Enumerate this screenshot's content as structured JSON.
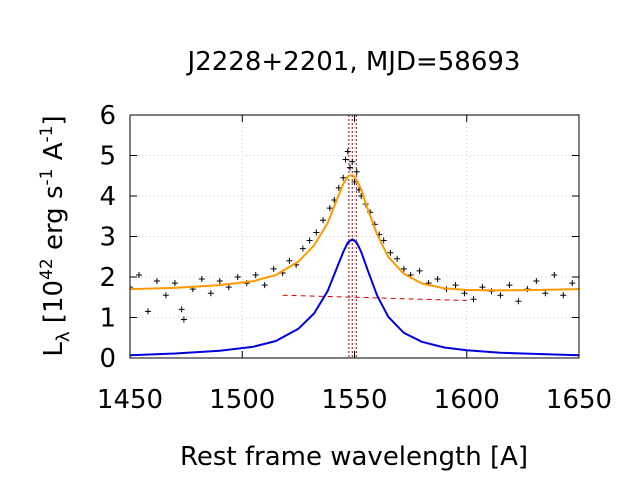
{
  "chart_data": {
    "type": "line",
    "title": "J2228+2201, MJD=58693",
    "xlabel": "Rest frame wavelength [A]",
    "ylabel": {
      "main": "L",
      "sub": "λ",
      "pre": " [10",
      "sup1": "42",
      "mid": " erg s",
      "sup2": "-1",
      "mid2": " A",
      "sup3": "-1",
      "post": "]"
    },
    "xlim": [
      1450,
      1650
    ],
    "ylim": [
      0,
      6
    ],
    "xticks": [
      1450,
      1500,
      1550,
      1600,
      1650
    ],
    "yticks": [
      0,
      1,
      2,
      3,
      4,
      5,
      6
    ],
    "grid": true,
    "colors": {
      "data": "#000000",
      "total_fit": "#ff9900",
      "line_component": "#0000dd",
      "continuum": "#dd0000",
      "marker": "#aa0000"
    },
    "vertical_markers": [
      1547.5,
      1549.0,
      1550.8
    ],
    "continuum": {
      "x": [
        1518,
        1600
      ],
      "y": [
        1.55,
        1.42
      ]
    },
    "line_component": {
      "x": [
        1450,
        1470,
        1490,
        1505,
        1515,
        1525,
        1532,
        1538,
        1542,
        1545,
        1547,
        1549,
        1551,
        1553,
        1556,
        1560,
        1565,
        1572,
        1580,
        1590,
        1600,
        1615,
        1630,
        1650
      ],
      "y": [
        0.07,
        0.11,
        0.18,
        0.28,
        0.42,
        0.72,
        1.1,
        1.65,
        2.2,
        2.62,
        2.85,
        2.93,
        2.85,
        2.62,
        2.15,
        1.55,
        1.02,
        0.62,
        0.4,
        0.26,
        0.19,
        0.13,
        0.1,
        0.07
      ]
    },
    "total_fit": {
      "x": [
        1450,
        1470,
        1490,
        1505,
        1515,
        1525,
        1532,
        1538,
        1542,
        1545,
        1547,
        1549,
        1551,
        1553,
        1556,
        1560,
        1565,
        1572,
        1580,
        1590,
        1600,
        1615,
        1630,
        1650
      ],
      "y": [
        1.7,
        1.73,
        1.8,
        1.9,
        2.05,
        2.38,
        2.78,
        3.33,
        3.88,
        4.3,
        4.48,
        4.52,
        4.4,
        4.16,
        3.66,
        3.06,
        2.5,
        2.08,
        1.84,
        1.72,
        1.68,
        1.67,
        1.68,
        1.7
      ]
    },
    "data_points": {
      "x": [
        1450,
        1454,
        1458,
        1462,
        1466,
        1470,
        1473,
        1474,
        1478,
        1482,
        1486,
        1490,
        1494,
        1498,
        1502,
        1506,
        1510,
        1514,
        1518,
        1521,
        1524,
        1527,
        1530,
        1533,
        1536,
        1539,
        1541,
        1543,
        1545,
        1546,
        1547,
        1548,
        1549,
        1550,
        1551,
        1552,
        1553,
        1555,
        1557,
        1559,
        1561,
        1563,
        1566,
        1569,
        1572,
        1575,
        1579,
        1583,
        1587,
        1591,
        1595,
        1599,
        1603,
        1607,
        1611,
        1615,
        1619,
        1623,
        1627,
        1631,
        1635,
        1639,
        1643,
        1647,
        1650
      ],
      "y": [
        1.75,
        2.05,
        1.15,
        1.9,
        1.55,
        1.85,
        1.2,
        0.95,
        1.7,
        1.95,
        1.6,
        1.9,
        1.75,
        2.0,
        1.85,
        2.05,
        1.8,
        2.2,
        2.1,
        2.4,
        2.3,
        2.7,
        2.9,
        3.1,
        3.4,
        3.7,
        3.9,
        4.2,
        4.45,
        4.9,
        5.1,
        4.7,
        4.85,
        4.35,
        4.6,
        4.15,
        4.0,
        3.8,
        3.6,
        3.3,
        3.05,
        2.9,
        2.6,
        2.45,
        2.2,
        2.05,
        2.15,
        1.85,
        1.95,
        1.7,
        1.8,
        1.6,
        1.45,
        1.75,
        1.65,
        1.55,
        1.8,
        1.4,
        1.7,
        1.9,
        1.6,
        2.05,
        1.55,
        1.85,
        1.7
      ]
    }
  }
}
